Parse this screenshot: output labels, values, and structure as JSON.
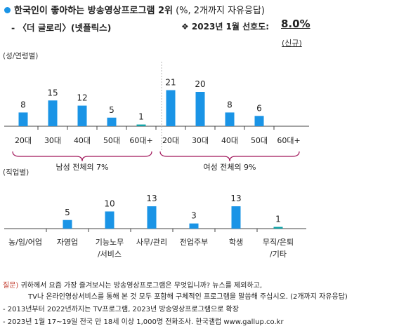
{
  "header": {
    "title_main": "한국인이 좋아하는 방송영상프로그램 2위",
    "title_note": "(%, 2개까지 자유응답)",
    "program": "- 〈더 글로리〉(넷플릭스)",
    "preference_label": "❖ 2023년 1월 선호도:",
    "preference_value": "8.0%",
    "new_tag": "(신규)"
  },
  "sections": {
    "gender_age": "(성/연령별)",
    "occupation": "(직업별)"
  },
  "colors": {
    "bar": "#1a94e6",
    "bar_small": "#11a3a8",
    "axis": "#444444",
    "brace": "#a0165a",
    "divider": "#bbbbbb"
  },
  "chart_data": [
    {
      "type": "bar",
      "title": "성/연령별",
      "categories": [
        "20대",
        "30대",
        "40대",
        "50대",
        "60대+",
        "20대",
        "30대",
        "40대",
        "50대",
        "60대+"
      ],
      "values": [
        8,
        15,
        12,
        5,
        1,
        21,
        20,
        8,
        6,
        null
      ],
      "value_labels": [
        "8",
        "15",
        "12",
        "5",
        "1",
        "21",
        "20",
        "8",
        "6",
        ""
      ],
      "groups": [
        {
          "label": "남성 전체의 7%",
          "from": 0,
          "to": 4
        },
        {
          "label": "여성 전체의 9%",
          "from": 5,
          "to": 9
        }
      ],
      "ylim": [
        0,
        25
      ]
    },
    {
      "type": "bar",
      "title": "직업별",
      "categories": [
        "농/임/어업",
        "자영업",
        "기능노무\n/서비스",
        "사무/관리",
        "전업주부",
        "학생",
        "무직/은퇴\n/기타"
      ],
      "values": [
        null,
        5,
        10,
        13,
        3,
        13,
        1
      ],
      "value_labels": [
        "",
        "5",
        "10",
        "13",
        "3",
        "13",
        "1"
      ],
      "ylim": [
        0,
        25
      ]
    }
  ],
  "footer": {
    "q_label": "질문)",
    "q_line1": "귀하께서 요즘 가장 즐겨보시는 방송영상프로그램은 무엇입니까? 뉴스를 제외하고,",
    "q_line2": "TV나 온라인영상서비스를 통해 본 것 모두 포함해 구체적인 프로그램을 말씀해 주십시오. (2개까지 자유응답)",
    "note1": "- 2013년부터 2022년까지는 TV프로그램, 2023년 방송영상프로그램으로 확장",
    "note2": "- 2023년 1월 17~19일 전국 만 18세 이상 1,000명 전화조사. 한국갤럽 www.gallup.co.kr"
  }
}
